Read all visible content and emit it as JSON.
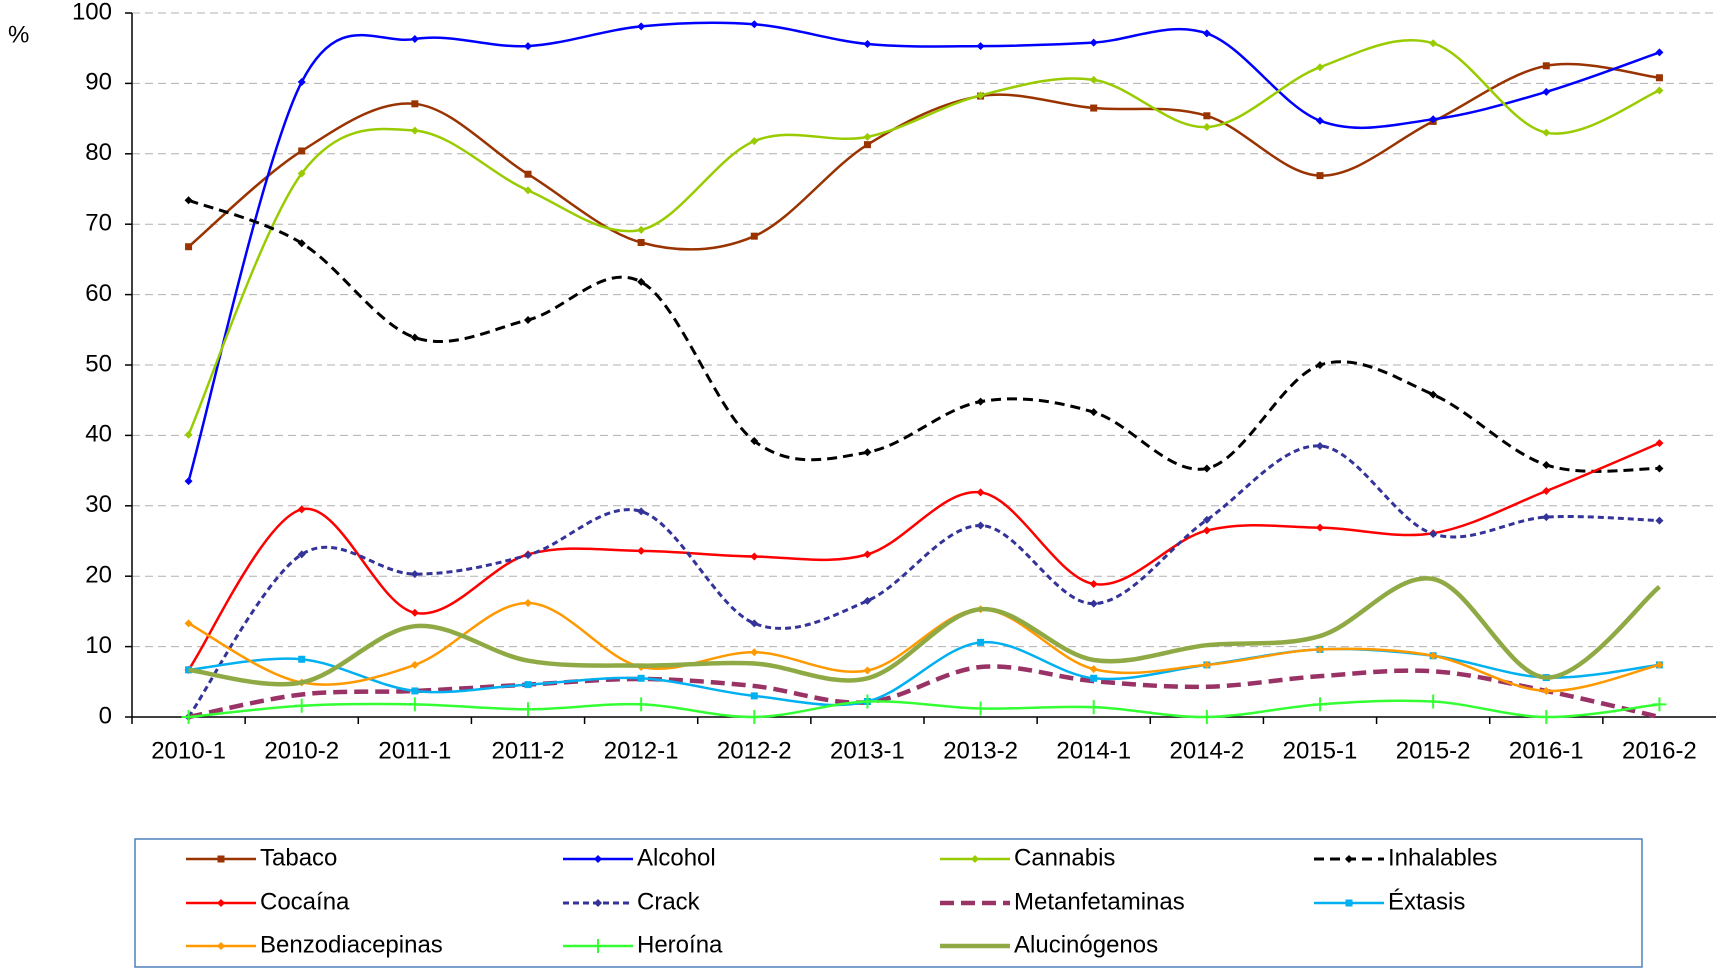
{
  "chart_data": {
    "type": "line",
    "y_label": "%",
    "categories": [
      "2010-1",
      "2010-2",
      "2011-1",
      "2011-2",
      "2012-1",
      "2012-2",
      "2013-1",
      "2013-2",
      "2014-1",
      "2014-2",
      "2015-1",
      "2015-2",
      "2016-1",
      "2016-2"
    ],
    "ylim": [
      0,
      100
    ],
    "yticks": [
      0,
      10,
      20,
      30,
      40,
      50,
      60,
      70,
      80,
      90,
      100
    ],
    "grid": true,
    "legend": "bottom",
    "series": [
      {
        "name": "Tabaco",
        "color": "#993300",
        "marker": "square",
        "values": [
          66.8,
          80.4,
          87.1,
          77.1,
          67.4,
          68.3,
          81.3,
          88.2,
          86.5,
          85.4,
          76.9,
          84.6,
          92.5,
          90.8
        ]
      },
      {
        "name": "Alcohol",
        "color": "#0000ff",
        "marker": "diamond",
        "values": [
          33.5,
          90.2,
          96.3,
          95.3,
          98.1,
          98.4,
          95.6,
          95.3,
          95.8,
          97.1,
          84.7,
          84.9,
          88.8,
          94.4
        ]
      },
      {
        "name": "Cannabis",
        "color": "#99cc00",
        "marker": "diamond",
        "values": [
          40.1,
          77.2,
          83.3,
          74.8,
          69.2,
          81.8,
          82.4,
          88.3,
          90.5,
          83.8,
          92.3,
          95.7,
          83.0,
          89.0
        ]
      },
      {
        "name": "Inhalables",
        "color": "#000000",
        "marker": "diamond",
        "dashed": true,
        "values": [
          73.4,
          67.3,
          53.9,
          56.4,
          61.8,
          39.2,
          37.6,
          44.8,
          43.3,
          35.3,
          50.0,
          45.8,
          35.8,
          35.3
        ]
      },
      {
        "name": "Cocaína",
        "color": "#ff0000",
        "marker": "diamond",
        "values": [
          6.7,
          29.5,
          14.8,
          23.1,
          23.6,
          22.8,
          23.1,
          31.9,
          18.9,
          26.5,
          26.9,
          26.1,
          32.1,
          38.9
        ]
      },
      {
        "name": "Crack",
        "color": "#333399",
        "marker": "diamond",
        "dashed": true,
        "values": [
          0,
          23.1,
          20.3,
          23.0,
          29.2,
          13.3,
          16.5,
          27.2,
          16.1,
          28.0,
          38.5,
          26.0,
          28.4,
          27.9
        ]
      },
      {
        "name": "Metanfetaminas",
        "color": "#993366",
        "marker": "none",
        "dashed": true,
        "values": [
          0,
          3.2,
          3.7,
          4.6,
          5.4,
          4.4,
          2.1,
          7.1,
          5.1,
          4.3,
          5.8,
          6.5,
          3.7,
          0
        ]
      },
      {
        "name": "Éxtasis",
        "color": "#00b0f0",
        "marker": "square",
        "values": [
          6.7,
          8.2,
          3.7,
          4.6,
          5.5,
          3.0,
          2.2,
          10.6,
          5.5,
          7.4,
          9.6,
          8.7,
          5.6,
          7.4
        ]
      },
      {
        "name": "Benzodiacepinas",
        "color": "#ff9900",
        "marker": "diamond",
        "values": [
          13.3,
          4.9,
          7.4,
          16.2,
          7.1,
          9.2,
          6.6,
          15.3,
          6.8,
          7.4,
          9.6,
          8.7,
          3.7,
          7.4
        ]
      },
      {
        "name": "Heroína",
        "color": "#33ff33",
        "marker": "plus",
        "values": [
          0,
          1.6,
          1.8,
          1.1,
          1.8,
          0,
          2.2,
          1.2,
          1.4,
          0,
          1.8,
          2.2,
          0,
          1.8
        ]
      },
      {
        "name": "Alucinógenos",
        "color": "#8faa45",
        "marker": "none",
        "values": [
          6.7,
          4.9,
          12.9,
          8.0,
          7.3,
          7.6,
          5.5,
          15.3,
          8.1,
          10.2,
          11.5,
          19.6,
          5.6,
          18.5
        ]
      }
    ]
  }
}
